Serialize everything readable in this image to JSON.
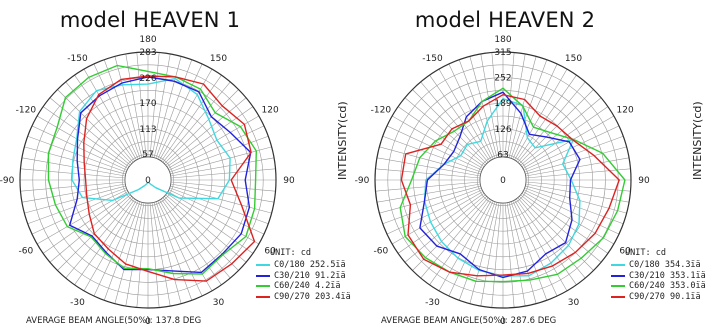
{
  "chart_data": [
    {
      "type": "polar",
      "title": "model HEAVEN 1",
      "ylabel": "INTENSITY(cd)",
      "unit_label": "UNIT: cd",
      "radial_ticks": [
        57,
        113,
        170,
        226,
        283
      ],
      "rmax": 283,
      "angle_labels": [
        "-150",
        "150",
        "-120",
        "120",
        "-90",
        "90",
        "-60",
        "60",
        "-30",
        "30",
        "0",
        "180"
      ],
      "series": [
        {
          "name": "C0/180",
          "value_text": "252.5ïä",
          "color": "#40d8e0",
          "values": [
            [
              -180,
              212
            ],
            [
              -165,
              232
            ],
            [
              -150,
              218
            ],
            [
              -135,
              190
            ],
            [
              -120,
              176
            ],
            [
              -105,
              188
            ],
            [
              -90,
              180
            ],
            [
              -75,
              160
            ],
            [
              -60,
              80
            ],
            [
              -45,
              24
            ],
            [
              -30,
              10
            ],
            [
              -15,
              6
            ],
            [
              0,
              5
            ],
            [
              15,
              8
            ],
            [
              30,
              14
            ],
            [
              45,
              30
            ],
            [
              60,
              90
            ],
            [
              75,
              150
            ],
            [
              90,
              168
            ],
            [
              105,
              172
            ],
            [
              120,
              182
            ],
            [
              135,
              214
            ],
            [
              150,
              228
            ],
            [
              165,
              218
            ],
            [
              180,
              212
            ]
          ]
        },
        {
          "name": "C30/210",
          "value_text": "91.2ïä",
          "color": "#2222dd",
          "values": [
            [
              -180,
              228
            ],
            [
              -165,
              226
            ],
            [
              -150,
              225
            ],
            [
              -135,
              198
            ],
            [
              -120,
              210
            ],
            [
              -105,
              235
            ],
            [
              -90,
              215
            ],
            [
              -75,
              232
            ],
            [
              -60,
              238
            ],
            [
              -45,
              232
            ],
            [
              -30,
              236
            ],
            [
              -15,
              208
            ],
            [
              0,
              198
            ],
            [
              15,
              205
            ],
            [
              30,
              185
            ],
            [
              45,
              175
            ],
            [
              60,
              200
            ],
            [
              75,
              162
            ],
            [
              90,
              152
            ],
            [
              105,
              162
            ],
            [
              120,
              180
            ],
            [
              135,
              210
            ],
            [
              150,
              215
            ],
            [
              165,
              222
            ],
            [
              180,
              228
            ]
          ]
        },
        {
          "name": "C60/240",
          "value_text": "4.2ïä",
          "color": "#33cc33",
          "values": [
            [
              -180,
              240
            ],
            [
              -165,
              236
            ],
            [
              -150,
              232
            ],
            [
              -135,
              210
            ],
            [
              -120,
              236
            ],
            [
              -105,
              248
            ],
            [
              -90,
              238
            ],
            [
              -75,
              244
            ],
            [
              -60,
              250
            ],
            [
              -45,
              234
            ],
            [
              -30,
              240
            ],
            [
              -15,
              214
            ],
            [
              0,
              196
            ],
            [
              15,
              202
            ],
            [
              30,
              188
            ],
            [
              45,
              178
            ],
            [
              60,
              206
            ],
            [
              75,
              212
            ],
            [
              90,
              220
            ],
            [
              105,
              228
            ],
            [
              120,
              232
            ],
            [
              135,
              258
            ],
            [
              150,
              262
            ],
            [
              165,
              262
            ],
            [
              180,
              240
            ]
          ]
        },
        {
          "name": "C90/270",
          "value_text": "203.4ïä",
          "color": "#dd2222",
          "values": [
            [
              -180,
              230
            ],
            [
              -165,
              236
            ],
            [
              -150,
              245
            ],
            [
              -135,
              232
            ],
            [
              -120,
              246
            ],
            [
              -105,
              236
            ],
            [
              -90,
              184
            ],
            [
              -75,
              214
            ],
            [
              -60,
              272
            ],
            [
              -45,
              262
            ],
            [
              -30,
              258
            ],
            [
              -15,
              228
            ],
            [
              0,
              202
            ],
            [
              15,
              192
            ],
            [
              30,
              176
            ],
            [
              45,
              168
            ],
            [
              60,
              150
            ],
            [
              75,
              140
            ],
            [
              90,
              138
            ],
            [
              105,
              146
            ],
            [
              120,
              164
            ],
            [
              135,
              192
            ],
            [
              150,
              218
            ],
            [
              165,
              230
            ],
            [
              180,
              230
            ]
          ]
        }
      ],
      "beam_angle_label": "AVERAGE BEAM ANGLE(50%):",
      "beam_angle_value": "137.8 DEG"
    },
    {
      "type": "polar",
      "title": "model HEAVEN 2",
      "ylabel": "INTENSITY(cd)",
      "unit_label": "UNIT: cd",
      "radial_ticks": [
        63,
        126,
        189,
        252,
        315
      ],
      "rmax": 315,
      "angle_labels": [
        "-150",
        "150",
        "-120",
        "120",
        "-90",
        "90",
        "-60",
        "60",
        "-30",
        "30",
        "0",
        "180"
      ],
      "series": [
        {
          "name": "C0/180",
          "value_text": "354.3ïä",
          "color": "#40d8e0",
          "values": [
            [
              -180,
              200
            ],
            [
              -165,
              190
            ],
            [
              -150,
              120
            ],
            [
              -135,
              112
            ],
            [
              -120,
              200
            ],
            [
              -105,
              152
            ],
            [
              -90,
              168
            ],
            [
              -75,
              196
            ],
            [
              -60,
              216
            ],
            [
              -45,
              228
            ],
            [
              -30,
              236
            ],
            [
              -15,
              244
            ],
            [
              0,
              236
            ],
            [
              15,
              230
            ],
            [
              30,
              222
            ],
            [
              45,
              214
            ],
            [
              60,
              206
            ],
            [
              75,
              200
            ],
            [
              90,
              190
            ],
            [
              105,
              150
            ],
            [
              120,
              120
            ],
            [
              135,
              124
            ],
            [
              150,
              110
            ],
            [
              165,
              150
            ],
            [
              180,
              200
            ]
          ]
        },
        {
          "name": "C30/210",
          "value_text": "353.1ïä",
          "color": "#2222dd",
          "values": [
            [
              -180,
              216
            ],
            [
              -165,
              170
            ],
            [
              -150,
              130
            ],
            [
              -135,
              150
            ],
            [
              -120,
              188
            ],
            [
              -105,
              196
            ],
            [
              -90,
              166
            ],
            [
              -75,
              170
            ],
            [
              -60,
              196
            ],
            [
              -45,
              218
            ],
            [
              -30,
              210
            ],
            [
              -15,
              232
            ],
            [
              0,
              240
            ],
            [
              15,
              228
            ],
            [
              30,
              210
            ],
            [
              45,
              230
            ],
            [
              60,
              236
            ],
            [
              75,
              200
            ],
            [
              90,
              186
            ],
            [
              105,
              150
            ],
            [
              120,
              140
            ],
            [
              135,
              150
            ],
            [
              150,
              180
            ],
            [
              165,
              200
            ],
            [
              180,
              216
            ]
          ]
        },
        {
          "name": "C60/240",
          "value_text": "353.0ïä",
          "color": "#33cc33",
          "values": [
            [
              -180,
              226
            ],
            [
              -165,
              188
            ],
            [
              -150,
              150
            ],
            [
              -135,
              165
            ],
            [
              -120,
              200
            ],
            [
              -105,
              254
            ],
            [
              -90,
              300
            ],
            [
              -75,
              292
            ],
            [
              -60,
              285
            ],
            [
              -45,
              272
            ],
            [
              -30,
              268
            ],
            [
              -15,
              255
            ],
            [
              0,
              250
            ],
            [
              15,
              258
            ],
            [
              30,
              262
            ],
            [
              45,
              270
            ],
            [
              60,
              278
            ],
            [
              75,
              262
            ],
            [
              90,
              225
            ],
            [
              105,
              212
            ],
            [
              120,
              192
            ],
            [
              135,
              170
            ],
            [
              150,
              168
            ],
            [
              165,
              200
            ],
            [
              180,
              226
            ]
          ]
        },
        {
          "name": "C90/270",
          "value_text": "90.1ïä",
          "color": "#dd2222",
          "values": [
            [
              -180,
              210
            ],
            [
              -165,
              205
            ],
            [
              -150,
              182
            ],
            [
              -135,
              188
            ],
            [
              -120,
              198
            ],
            [
              -105,
              232
            ],
            [
              -90,
              286
            ],
            [
              -75,
              270
            ],
            [
              -60,
              262
            ],
            [
              -45,
              252
            ],
            [
              -30,
              244
            ],
            [
              -15,
              238
            ],
            [
              0,
              234
            ],
            [
              15,
              244
            ],
            [
              30,
              262
            ],
            [
              45,
              276
            ],
            [
              60,
              270
            ],
            [
              75,
              236
            ],
            [
              90,
              250
            ],
            [
              105,
              248
            ],
            [
              120,
              176
            ],
            [
              135,
              178
            ],
            [
              150,
              168
            ],
            [
              165,
              188
            ],
            [
              180,
              210
            ]
          ]
        }
      ],
      "beam_angle_label": "AVERAGE BEAM ANGLE(50%):",
      "beam_angle_value": "287.6 DEG"
    }
  ]
}
